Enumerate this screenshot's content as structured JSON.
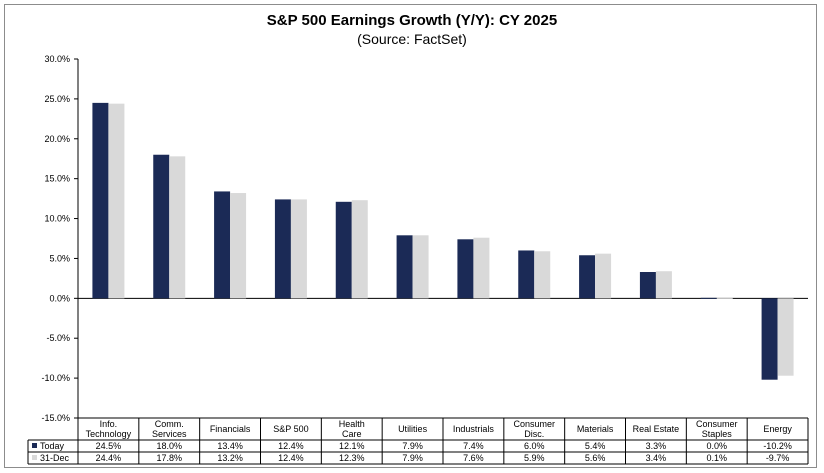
{
  "chart_data": {
    "type": "bar",
    "title": "S&P 500 Earnings Growth (Y/Y): CY 2025",
    "subtitle": "(Source: FactSet)",
    "categories": [
      [
        "Info.",
        "Technology"
      ],
      [
        "Comm.",
        "Services"
      ],
      [
        "Financials"
      ],
      [
        "S&P 500"
      ],
      [
        "Health",
        "Care"
      ],
      [
        "Utilities"
      ],
      [
        "Industrials"
      ],
      [
        "Consumer",
        "Disc."
      ],
      [
        "Materials"
      ],
      [
        "Real Estate"
      ],
      [
        "Consumer",
        "Staples"
      ],
      [
        "Energy"
      ]
    ],
    "series": [
      {
        "name": "Today",
        "color": "#1b2a56",
        "values": [
          24.5,
          18.0,
          13.4,
          12.4,
          12.1,
          7.9,
          7.4,
          6.0,
          5.4,
          3.3,
          0.0,
          -10.2
        ],
        "labels": [
          "24.5%",
          "18.0%",
          "13.4%",
          "12.4%",
          "12.1%",
          "7.9%",
          "7.4%",
          "6.0%",
          "5.4%",
          "3.3%",
          "0.0%",
          "-10.2%"
        ]
      },
      {
        "name": "31-Dec",
        "color": "#d9d9d9",
        "values": [
          24.4,
          17.8,
          13.2,
          12.4,
          12.3,
          7.9,
          7.6,
          5.9,
          5.6,
          3.4,
          0.1,
          -9.7
        ],
        "labels": [
          "24.4%",
          "17.8%",
          "13.2%",
          "12.4%",
          "12.3%",
          "7.9%",
          "7.6%",
          "5.9%",
          "5.6%",
          "3.4%",
          "0.1%",
          "-9.7%"
        ]
      }
    ],
    "ylim": [
      -15,
      30
    ],
    "yticks": [
      30,
      25,
      20,
      15,
      10,
      5,
      0,
      -5,
      -10,
      -15
    ],
    "ytick_labels": [
      "30.0%",
      "25.0%",
      "20.0%",
      "15.0%",
      "10.0%",
      "5.0%",
      "0.0%",
      "-5.0%",
      "-10.0%",
      "-15.0%"
    ],
    "xlabel": "",
    "ylabel": "",
    "grid": false,
    "legend": "data-table"
  }
}
